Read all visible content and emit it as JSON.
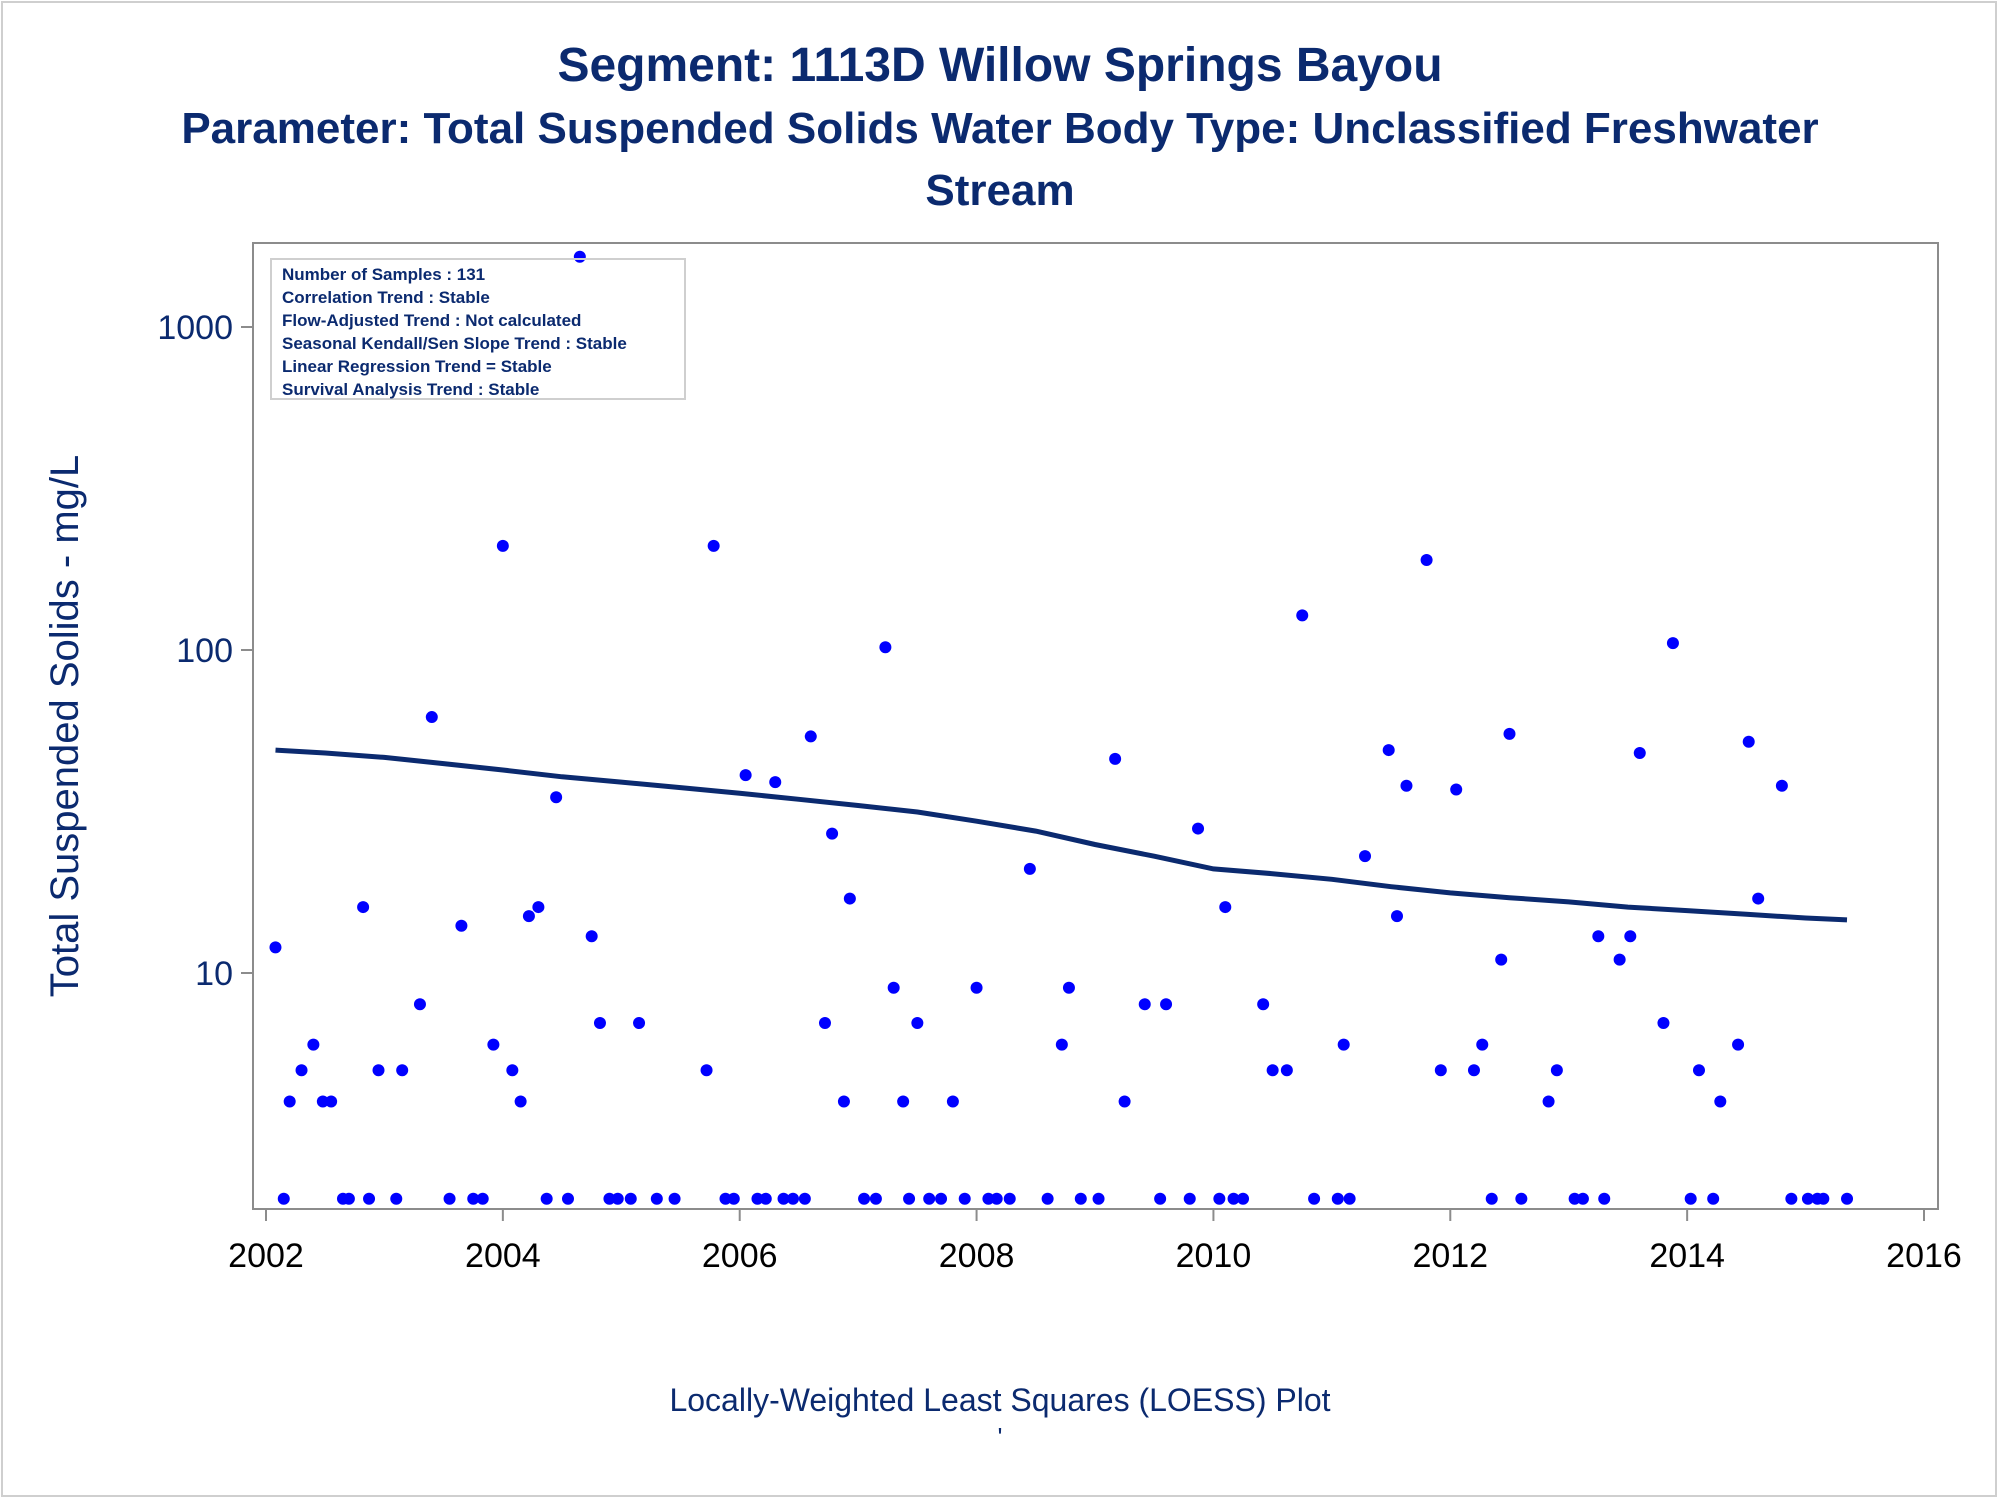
{
  "titles": {
    "line1": "Segment: 1113D  Willow Springs Bayou",
    "line2": "Parameter: Total Suspended Solids   Water Body Type: Unclassified Freshwater",
    "line3": "Stream"
  },
  "footnote": "Locally-Weighted Least Squares (LOESS) Plot",
  "footnote_mark": "'",
  "stats": [
    "Number of Samples : 131",
    "Correlation Trend : Stable",
    "Flow-Adjusted Trend : Not calculated",
    "Seasonal Kendall/Sen Slope Trend : Stable",
    "Linear Regression Trend = Stable",
    "Survival Analysis Trend : Stable"
  ],
  "colors": {
    "points": "#0000ff",
    "loess": "#0b2a6f",
    "text": "#0b2a6f",
    "axis": "#8c8c8c"
  },
  "chart_data": {
    "type": "scatter",
    "ylabel": "Total Suspended Solids - mg/L",
    "xlabel": "",
    "yscale": "log",
    "xlim": [
      2002,
      2016
    ],
    "ylim": [
      2,
      1800
    ],
    "xticks": [
      "2002",
      "2004",
      "2006",
      "2008",
      "2010",
      "2012",
      "2014",
      "2016"
    ],
    "yticks": [
      "10",
      "100",
      "1000"
    ],
    "points": {
      "x": [
        2002.08,
        2002.15,
        2002.2,
        2002.3,
        2002.4,
        2002.48,
        2002.55,
        2002.65,
        2002.7,
        2002.82,
        2002.87,
        2002.95,
        2003.1,
        2003.15,
        2003.3,
        2003.4,
        2003.55,
        2003.65,
        2003.75,
        2003.83,
        2003.92,
        2004.0,
        2004.08,
        2004.15,
        2004.22,
        2004.3,
        2004.37,
        2004.45,
        2004.55,
        2004.65,
        2004.75,
        2004.82,
        2004.9,
        2004.97,
        2005.08,
        2005.15,
        2005.3,
        2005.45,
        2005.72,
        2005.78,
        2005.88,
        2005.95,
        2006.05,
        2006.15,
        2006.22,
        2006.3,
        2006.37,
        2006.45,
        2006.55,
        2006.6,
        2006.72,
        2006.78,
        2006.88,
        2006.93,
        2007.05,
        2007.15,
        2007.23,
        2007.3,
        2007.38,
        2007.43,
        2007.5,
        2007.6,
        2007.7,
        2007.8,
        2007.9,
        2008.0,
        2008.1,
        2008.17,
        2008.28,
        2008.45,
        2008.6,
        2008.72,
        2008.78,
        2008.88,
        2009.03,
        2009.17,
        2009.25,
        2009.42,
        2009.55,
        2009.6,
        2009.8,
        2009.87,
        2010.05,
        2010.1,
        2010.17,
        2010.25,
        2010.42,
        2010.5,
        2010.62,
        2010.75,
        2010.85,
        2011.05,
        2011.1,
        2011.15,
        2011.28,
        2011.48,
        2011.55,
        2011.63,
        2011.8,
        2011.92,
        2012.05,
        2012.2,
        2012.27,
        2012.35,
        2012.43,
        2012.5,
        2012.6,
        2012.83,
        2012.9,
        2013.05,
        2013.12,
        2013.25,
        2013.3,
        2013.43,
        2013.52,
        2013.6,
        2013.8,
        2013.88,
        2014.03,
        2014.1,
        2014.22,
        2014.28,
        2014.43,
        2014.52,
        2014.6,
        2014.8,
        2014.88,
        2015.02,
        2015.1,
        2015.15,
        2015.35
      ],
      "y": [
        12,
        2,
        4,
        5,
        6,
        4,
        4,
        2,
        2,
        16,
        2,
        5,
        2,
        5,
        8,
        62,
        2,
        14,
        2,
        2,
        6,
        210,
        5,
        4,
        15,
        16,
        2,
        35,
        2,
        1650,
        13,
        7,
        2,
        2,
        2,
        7,
        2,
        2,
        5,
        210,
        2,
        2,
        41,
        2,
        2,
        39,
        2,
        2,
        2,
        54,
        7,
        27,
        4,
        17,
        2,
        2,
        102,
        9,
        4,
        2,
        7,
        2,
        2,
        4,
        2,
        9,
        2,
        2,
        2,
        21,
        2,
        6,
        9,
        2,
        2,
        46,
        4,
        8,
        2,
        8,
        2,
        28,
        2,
        16,
        2,
        2,
        8,
        5,
        5,
        128,
        2,
        2,
        6,
        2,
        23,
        49,
        15,
        38,
        190,
        5,
        37,
        5,
        6,
        2,
        11,
        55,
        2,
        4,
        5,
        2,
        2,
        13,
        2,
        11,
        13,
        48,
        7,
        105,
        2,
        5,
        2,
        4,
        6,
        52,
        17,
        38,
        2,
        2,
        2,
        2,
        2
      ],
      "series_name": ""
    },
    "loess": {
      "x": [
        2002.08,
        2002.5,
        2003.0,
        2003.5,
        2004.0,
        2004.5,
        2005.0,
        2005.5,
        2006.0,
        2006.5,
        2007.0,
        2007.5,
        2008.0,
        2008.5,
        2009.0,
        2009.5,
        2010.0,
        2010.5,
        2011.0,
        2011.5,
        2012.0,
        2012.5,
        2013.0,
        2013.5,
        2014.0,
        2014.5,
        2015.0,
        2015.35
      ],
      "y": [
        49,
        48,
        46.5,
        44.5,
        42.5,
        40.5,
        39,
        37.5,
        36,
        34.5,
        33,
        31.5,
        29.5,
        27.5,
        25,
        23,
        21,
        20.3,
        19.5,
        18.5,
        17.7,
        17.1,
        16.6,
        16,
        15.6,
        15.2,
        14.8,
        14.6
      ]
    }
  }
}
